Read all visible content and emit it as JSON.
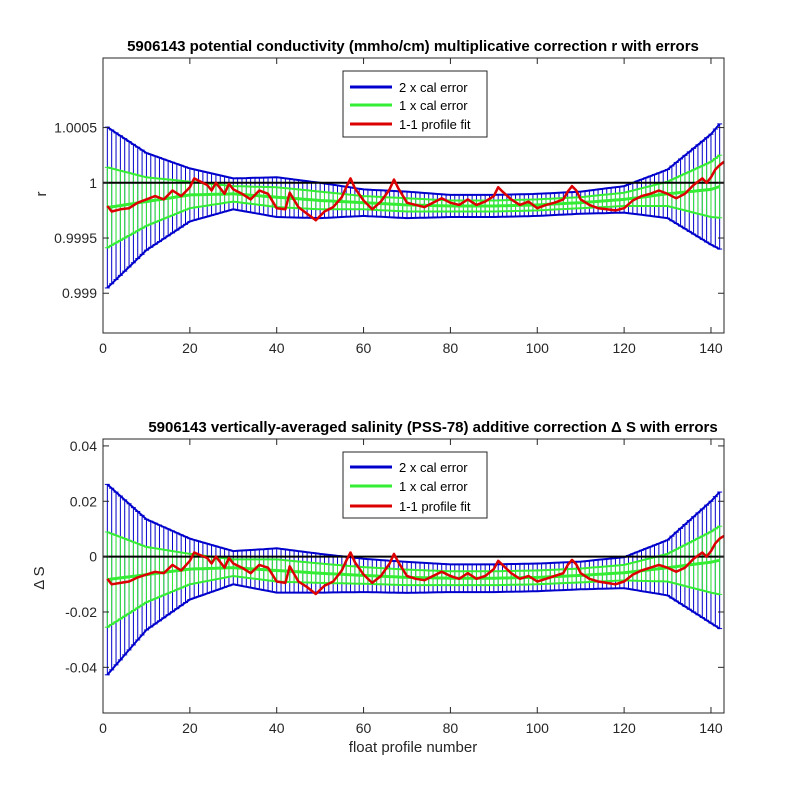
{
  "chart_data": [
    {
      "type": "line",
      "title": "5906143 potential conductivity (mmho/cm) multiplicative correction r with errors",
      "xlabel": "",
      "ylabel": "r",
      "xlim": [
        0,
        143
      ],
      "ylim": [
        0.99864,
        1.00113
      ],
      "xticks": [
        0,
        20,
        40,
        60,
        80,
        100,
        120,
        140
      ],
      "yticks": [
        0.999,
        0.9995,
        1,
        1.0005
      ],
      "ytick_labels": [
        "0.999",
        "0.9995",
        "1",
        "1.0005"
      ],
      "reference_line": 1,
      "legend": {
        "placement": "top-center",
        "entries": [
          "2 x cal error",
          "1 x cal error",
          "1-1 profile fit"
        ]
      },
      "colors": {
        "two_cal_error": "#0000cc",
        "one_cal_error": "#33ee33",
        "profile_fit": "#dd0000",
        "reference": "#000000"
      },
      "series": [
        {
          "name": "1-1 profile fit",
          "points": [
            [
              1,
              0.99979
            ],
            [
              2,
              0.99974
            ],
            [
              4,
              0.99976
            ],
            [
              6,
              0.99977
            ],
            [
              8,
              0.99982
            ],
            [
              10,
              0.99985
            ],
            [
              12,
              0.99988
            ],
            [
              14,
              0.99985
            ],
            [
              16,
              0.99993
            ],
            [
              18,
              0.99988
            ],
            [
              20,
              0.99996
            ],
            [
              21,
              1.00004
            ],
            [
              22,
              1.00002
            ],
            [
              24,
              0.99998
            ],
            [
              25,
              0.99993
            ],
            [
              26,
              1.0
            ],
            [
              28,
              0.9999
            ],
            [
              29,
              0.99999
            ],
            [
              30,
              0.99994
            ],
            [
              32,
              0.9999
            ],
            [
              34,
              0.99985
            ],
            [
              36,
              0.99993
            ],
            [
              38,
              0.9999
            ],
            [
              40,
              0.99977
            ],
            [
              42,
              0.99976
            ],
            [
              43,
              0.99991
            ],
            [
              45,
              0.99978
            ],
            [
              47,
              0.99972
            ],
            [
              49,
              0.99966
            ],
            [
              51,
              0.99974
            ],
            [
              53,
              0.99978
            ],
            [
              55,
              0.99987
            ],
            [
              56,
              0.99996
            ],
            [
              57,
              1.00004
            ],
            [
              58,
              0.99995
            ],
            [
              60,
              0.99984
            ],
            [
              62,
              0.99976
            ],
            [
              64,
              0.99983
            ],
            [
              66,
              0.99994
            ],
            [
              67,
              1.00003
            ],
            [
              68,
              0.99995
            ],
            [
              70,
              0.99982
            ],
            [
              72,
              0.9998
            ],
            [
              74,
              0.99978
            ],
            [
              76,
              0.99982
            ],
            [
              78,
              0.99986
            ],
            [
              80,
              0.99982
            ],
            [
              82,
              0.9998
            ],
            [
              84,
              0.99985
            ],
            [
              86,
              0.9998
            ],
            [
              88,
              0.99983
            ],
            [
              90,
              0.99988
            ],
            [
              91,
              0.99996
            ],
            [
              92,
              0.99992
            ],
            [
              94,
              0.99985
            ],
            [
              96,
              0.9998
            ],
            [
              98,
              0.99983
            ],
            [
              100,
              0.99977
            ],
            [
              102,
              0.9998
            ],
            [
              104,
              0.99982
            ],
            [
              106,
              0.99985
            ],
            [
              107,
              0.99992
            ],
            [
              108,
              0.99997
            ],
            [
              109,
              0.99993
            ],
            [
              110,
              0.99985
            ],
            [
              112,
              0.9998
            ],
            [
              114,
              0.99977
            ],
            [
              116,
              0.99976
            ],
            [
              118,
              0.99975
            ],
            [
              120,
              0.99977
            ],
            [
              122,
              0.99984
            ],
            [
              124,
              0.99988
            ],
            [
              126,
              0.9999
            ],
            [
              128,
              0.99993
            ],
            [
              130,
              0.9999
            ],
            [
              132,
              0.99986
            ],
            [
              134,
              0.9999
            ],
            [
              136,
              0.99998
            ],
            [
              138,
              1.00004
            ],
            [
              139,
              1.0
            ],
            [
              140,
              1.00005
            ],
            [
              141,
              1.00012
            ],
            [
              142,
              1.00016
            ],
            [
              143,
              1.00019
            ]
          ]
        },
        {
          "name": "1 x cal error",
          "x": [
            0,
            10,
            20,
            30,
            40,
            50,
            60,
            70,
            80,
            90,
            100,
            110,
            120,
            130,
            140,
            143
          ],
          "center": [
            0.99977,
            0.99983,
            0.99989,
            0.9999,
            0.99987,
            0.99984,
            0.99982,
            0.9998,
            0.99979,
            0.99979,
            0.9998,
            0.99982,
            0.99985,
            0.9999,
            0.99994,
            0.99998
          ],
          "error": [
            0.00038,
            0.00022,
            0.00012,
            7e-05,
            9e-05,
            8e-05,
            6e-05,
            6e-05,
            5e-05,
            5e-05,
            5e-05,
            5e-05,
            6e-05,
            0.00011,
            0.00025,
            0.0003
          ]
        },
        {
          "name": "2 x cal error",
          "x": [
            0,
            10,
            20,
            30,
            40,
            50,
            60,
            70,
            80,
            90,
            100,
            110,
            120,
            130,
            140,
            143
          ],
          "center": [
            0.99977,
            0.99983,
            0.99989,
            0.9999,
            0.99987,
            0.99984,
            0.99982,
            0.9998,
            0.99979,
            0.99979,
            0.9998,
            0.99982,
            0.99985,
            0.9999,
            0.99994,
            0.99998
          ],
          "error": [
            0.00076,
            0.00044,
            0.00024,
            0.00014,
            0.00018,
            0.00016,
            0.00012,
            0.00012,
            0.0001,
            0.0001,
            0.0001,
            0.0001,
            0.00012,
            0.00022,
            0.0005,
            0.0006
          ]
        }
      ]
    },
    {
      "type": "line",
      "title": "5906143 vertically-averaged salinity (PSS-78) additive correction Δ S with errors",
      "xlabel": "float profile number",
      "ylabel": "Δ S",
      "xlim": [
        0,
        143
      ],
      "ylim": [
        -0.0565,
        0.0425
      ],
      "xticks": [
        0,
        20,
        40,
        60,
        80,
        100,
        120,
        140
      ],
      "yticks": [
        -0.04,
        -0.02,
        0,
        0.02,
        0.04
      ],
      "ytick_labels": [
        "-0.04",
        "-0.02",
        "0",
        "0.02",
        "0.04"
      ],
      "reference_line": 0,
      "legend": {
        "placement": "top-center",
        "entries": [
          "2 x cal error",
          "1 x cal error",
          "1-1 profile fit"
        ]
      },
      "colors": {
        "two_cal_error": "#0000cc",
        "one_cal_error": "#33ee33",
        "profile_fit": "#dd0000",
        "reference": "#000000"
      },
      "series": [
        {
          "name": "1-1 profile fit",
          "points": [
            [
              1,
              -0.008
            ],
            [
              2,
              -0.01
            ],
            [
              4,
              -0.0095
            ],
            [
              6,
              -0.009
            ],
            [
              8,
              -0.0075
            ],
            [
              10,
              -0.0065
            ],
            [
              12,
              -0.0055
            ],
            [
              14,
              -0.006
            ],
            [
              16,
              -0.003
            ],
            [
              18,
              -0.005
            ],
            [
              20,
              -0.0015
            ],
            [
              21,
              0.0015
            ],
            [
              22,
              0.0008
            ],
            [
              24,
              -0.0005
            ],
            [
              25,
              -0.0025
            ],
            [
              26,
              0.0
            ],
            [
              28,
              -0.004
            ],
            [
              29,
              -0.0005
            ],
            [
              30,
              -0.0025
            ],
            [
              32,
              -0.004
            ],
            [
              34,
              -0.006
            ],
            [
              36,
              -0.003
            ],
            [
              38,
              -0.004
            ],
            [
              40,
              -0.009
            ],
            [
              42,
              -0.0095
            ],
            [
              43,
              -0.0035
            ],
            [
              45,
              -0.009
            ],
            [
              47,
              -0.011
            ],
            [
              49,
              -0.0135
            ],
            [
              51,
              -0.0105
            ],
            [
              53,
              -0.009
            ],
            [
              55,
              -0.005
            ],
            [
              56,
              -0.0015
            ],
            [
              57,
              0.0015
            ],
            [
              58,
              -0.002
            ],
            [
              60,
              -0.0065
            ],
            [
              62,
              -0.0095
            ],
            [
              64,
              -0.007
            ],
            [
              66,
              -0.0025
            ],
            [
              67,
              0.001
            ],
            [
              68,
              -0.002
            ],
            [
              70,
              -0.007
            ],
            [
              72,
              -0.008
            ],
            [
              74,
              -0.0085
            ],
            [
              76,
              -0.007
            ],
            [
              78,
              -0.0055
            ],
            [
              80,
              -0.007
            ],
            [
              82,
              -0.008
            ],
            [
              84,
              -0.006
            ],
            [
              86,
              -0.008
            ],
            [
              88,
              -0.007
            ],
            [
              90,
              -0.0045
            ],
            [
              91,
              -0.0015
            ],
            [
              92,
              -0.003
            ],
            [
              94,
              -0.006
            ],
            [
              96,
              -0.008
            ],
            [
              98,
              -0.007
            ],
            [
              100,
              -0.009
            ],
            [
              102,
              -0.008
            ],
            [
              104,
              -0.007
            ],
            [
              106,
              -0.006
            ],
            [
              107,
              -0.003
            ],
            [
              108,
              -0.0012
            ],
            [
              109,
              -0.0028
            ],
            [
              110,
              -0.006
            ],
            [
              112,
              -0.008
            ],
            [
              114,
              -0.009
            ],
            [
              116,
              -0.0095
            ],
            [
              118,
              -0.01
            ],
            [
              120,
              -0.009
            ],
            [
              122,
              -0.0065
            ],
            [
              124,
              -0.005
            ],
            [
              126,
              -0.004
            ],
            [
              128,
              -0.003
            ],
            [
              130,
              -0.004
            ],
            [
              132,
              -0.0055
            ],
            [
              134,
              -0.004
            ],
            [
              136,
              -0.0008
            ],
            [
              138,
              0.0015
            ],
            [
              139,
              0.0
            ],
            [
              140,
              0.002
            ],
            [
              141,
              0.0048
            ],
            [
              142,
              0.0065
            ],
            [
              143,
              0.0075
            ]
          ]
        },
        {
          "name": "1 x cal error",
          "x": [
            0,
            10,
            20,
            30,
            40,
            50,
            60,
            70,
            80,
            90,
            100,
            110,
            120,
            130,
            140,
            143
          ],
          "center": [
            -0.0085,
            -0.0065,
            -0.0045,
            -0.004,
            -0.005,
            -0.006,
            -0.0068,
            -0.0075,
            -0.0078,
            -0.0078,
            -0.0075,
            -0.0068,
            -0.0058,
            -0.004,
            -0.002,
            -0.001
          ],
          "error": [
            0.018,
            0.01,
            0.0055,
            0.003,
            0.004,
            0.0035,
            0.003,
            0.0028,
            0.0025,
            0.0025,
            0.0025,
            0.0025,
            0.0028,
            0.005,
            0.011,
            0.013
          ]
        },
        {
          "name": "2 x cal error",
          "x": [
            0,
            10,
            20,
            30,
            40,
            50,
            60,
            70,
            80,
            90,
            100,
            110,
            120,
            130,
            140,
            143
          ],
          "center": [
            -0.0085,
            -0.0065,
            -0.0045,
            -0.004,
            -0.005,
            -0.006,
            -0.0068,
            -0.0075,
            -0.0078,
            -0.0078,
            -0.0075,
            -0.0068,
            -0.0058,
            -0.004,
            -0.002,
            -0.001
          ],
          "error": [
            0.036,
            0.02,
            0.011,
            0.006,
            0.008,
            0.007,
            0.006,
            0.0056,
            0.005,
            0.005,
            0.005,
            0.005,
            0.0056,
            0.01,
            0.022,
            0.026
          ]
        }
      ]
    }
  ]
}
